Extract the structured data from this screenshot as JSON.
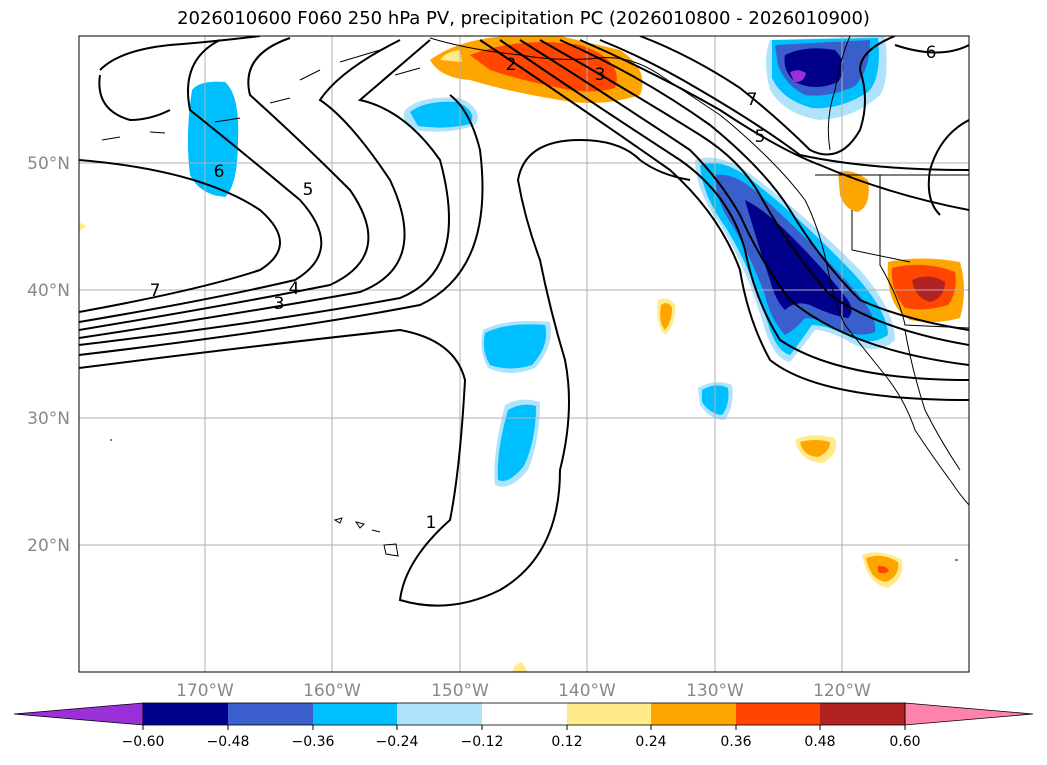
{
  "title": "2026010600 F060 250 hPa PV, precipitation PC (2026010800 - 2026010900)",
  "map": {
    "lat_labels": [
      "50°N",
      "40°N",
      "30°N",
      "20°N"
    ],
    "lon_labels": [
      "170°W",
      "160°W",
      "150°W",
      "140°W",
      "130°W",
      "120°W"
    ]
  },
  "pv_contour_labels": [
    "2",
    "3",
    "6",
    "7",
    "5",
    "6",
    "5",
    "7",
    "4",
    "3",
    "1"
  ],
  "colorbar": {
    "ticks": [
      "−0.60",
      "−0.48",
      "−0.36",
      "−0.24",
      "−0.12",
      "0.12",
      "0.24",
      "0.36",
      "0.48",
      "0.60"
    ],
    "colors": {
      "under": "#9b30d8",
      "neg_060_048": "#00008b",
      "neg_048_036": "#3a5fcd",
      "neg_036_024": "#00bfff",
      "neg_024_012": "#aee3fb",
      "neutral": "#ffffff",
      "pos_012_024": "#ffeb8a",
      "pos_024_036": "#ffa500",
      "pos_036_048": "#ff4500",
      "pos_048_060": "#b22222",
      "over": "#ff82ab"
    }
  }
}
